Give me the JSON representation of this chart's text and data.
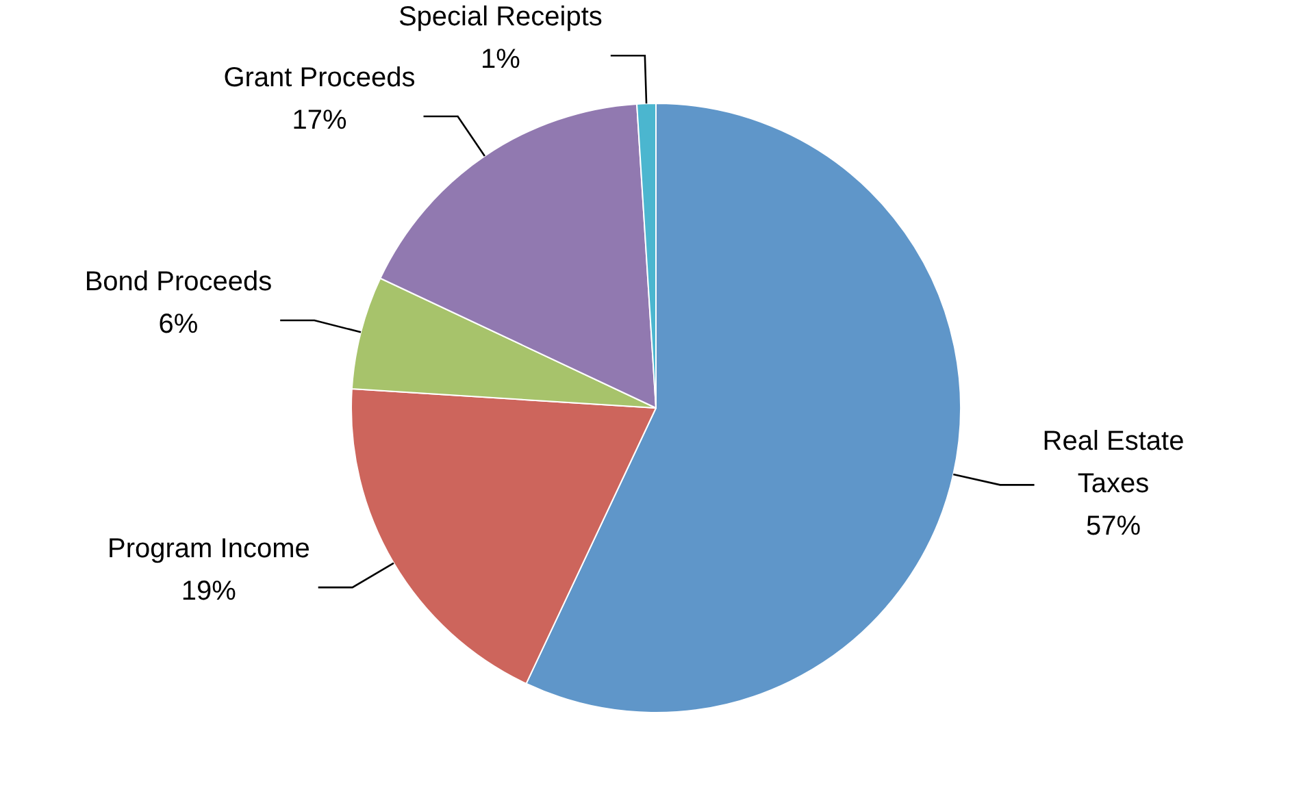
{
  "chart_data": {
    "type": "pie",
    "categories": [
      "Real Estate Taxes",
      "Program Income",
      "Bond Proceeds",
      "Grant Proceeds",
      "Special Receipts"
    ],
    "values": [
      57,
      19,
      6,
      17,
      1
    ],
    "colors": [
      "#5f96c9",
      "#cd655c",
      "#a7c36b",
      "#9179b0",
      "#4bb6cf"
    ],
    "value_labels": [
      "57%",
      "19%",
      "6%",
      "17%",
      "1%"
    ],
    "legend": false
  }
}
